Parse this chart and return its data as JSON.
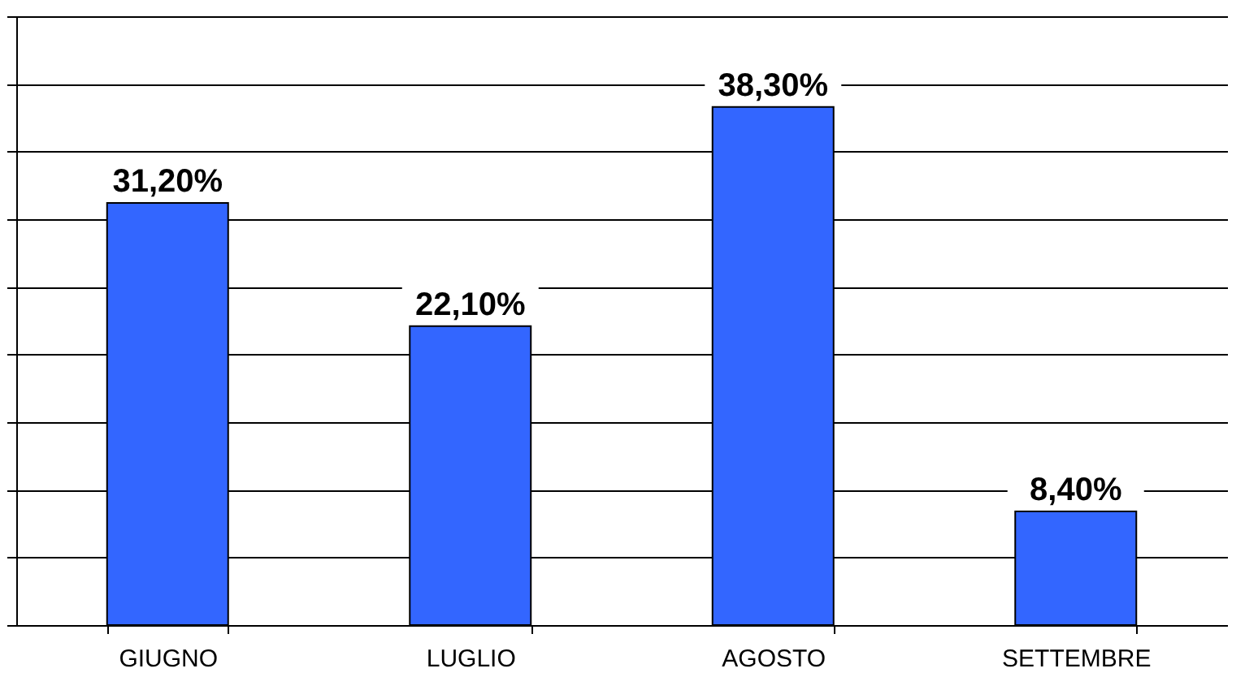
{
  "chart_data": {
    "type": "bar",
    "categories": [
      "GIUGNO",
      "LUGLIO",
      "AGOSTO",
      "SETTEMBRE"
    ],
    "values": [
      31.2,
      22.1,
      38.3,
      8.4
    ],
    "value_labels": [
      "31,20%",
      "22,10%",
      "38,30%",
      "8,40%"
    ],
    "color": "#3366ff",
    "ylim": [
      0,
      45
    ],
    "yticks": [
      {
        "value": 0,
        "label": null
      },
      {
        "value": 5,
        "label": null
      },
      {
        "value": 10,
        "label": null
      },
      {
        "value": 15,
        "label": null
      },
      {
        "value": 20,
        "label": null
      },
      {
        "value": 25,
        "label": null
      },
      {
        "value": 30,
        "label": null
      },
      {
        "value": 35,
        "label": null
      },
      {
        "value": 40,
        "label": null
      },
      {
        "value": 45,
        "label": null
      }
    ],
    "grid": "y",
    "tick_labels": "x"
  }
}
